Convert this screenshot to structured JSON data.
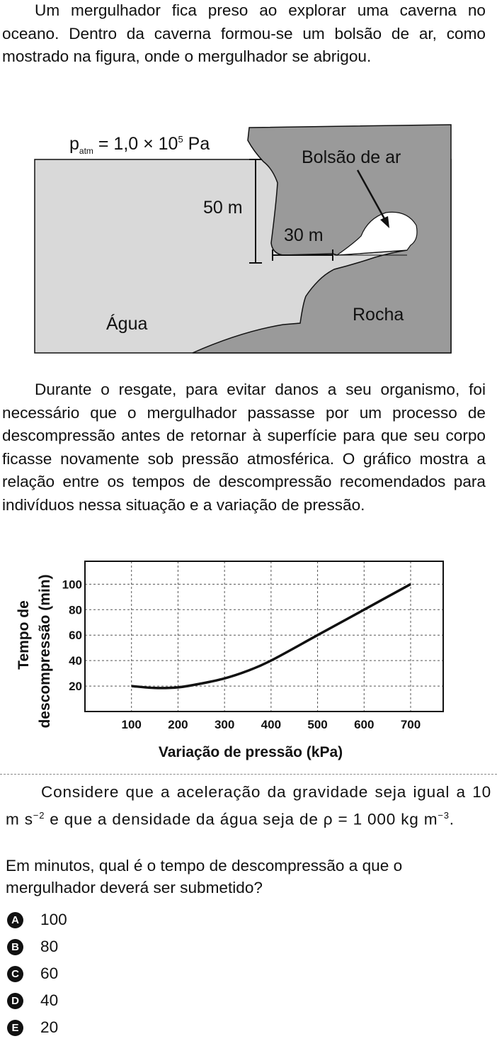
{
  "intro": "Um mergulhador fica preso ao explorar uma caverna no oceano. Dentro da caverna formou-se um bolsão de ar, como mostrado na figura, onde o mergulhador se abrigou.",
  "figure": {
    "patm_p": "p",
    "patm_sub": "atm",
    "patm_rest": " = 1,0 × 10",
    "patm_exp": "5",
    "patm_unit": " Pa",
    "bolsao": "Bolsão de ar",
    "depth": "50 m",
    "horizontal": "30 m",
    "agua": "Água",
    "rocha": "Rocha",
    "colors": {
      "water": "#d9d9d9",
      "rock": "#9a9a9a",
      "air": "#ffffff"
    }
  },
  "middle": "Durante o resgate, para evitar danos a seu organismo, foi necessário que o mergulhador passasse por um processo de descompressão antes de retornar à superfície para que seu corpo ficasse novamente sob pressão atmosférica. O gráfico mostra a relação entre os tempos de descompressão recomendados para indivíduos nessa situação e a variação de pressão.",
  "chart_data": {
    "type": "line",
    "xlabel": "Variação de pressão (kPa)",
    "ylabel_line1": "Tempo de",
    "ylabel_line2": "descompressão  (min)",
    "x_ticks": [
      "100",
      "200",
      "300",
      "400",
      "500",
      "600",
      "700"
    ],
    "y_ticks": [
      "20",
      "40",
      "60",
      "80",
      "100"
    ],
    "xlim": [
      0,
      770
    ],
    "ylim": [
      0,
      118
    ],
    "grid": true,
    "series": [
      {
        "x": [
          100,
          150,
          200,
          250,
          300,
          350,
          400,
          500,
          600,
          700
        ],
        "y": [
          20,
          18.5,
          19,
          22,
          26,
          32,
          40,
          60,
          80,
          100
        ]
      }
    ]
  },
  "consider": {
    "part1": "Considere que a aceleração da gravidade seja igual a 10 m s",
    "exp1": "−2",
    "part2": " e que a densidade da água seja de ρ = 1 000 kg m",
    "exp2": "−3",
    "part3": "."
  },
  "question": "Em minutos, qual é o tempo de descompressão a que o mergulhador deverá ser submetido?",
  "options": [
    {
      "letter": "A",
      "value": "100"
    },
    {
      "letter": "B",
      "value": "80"
    },
    {
      "letter": "C",
      "value": "60"
    },
    {
      "letter": "D",
      "value": "40"
    },
    {
      "letter": "E",
      "value": "20"
    }
  ]
}
